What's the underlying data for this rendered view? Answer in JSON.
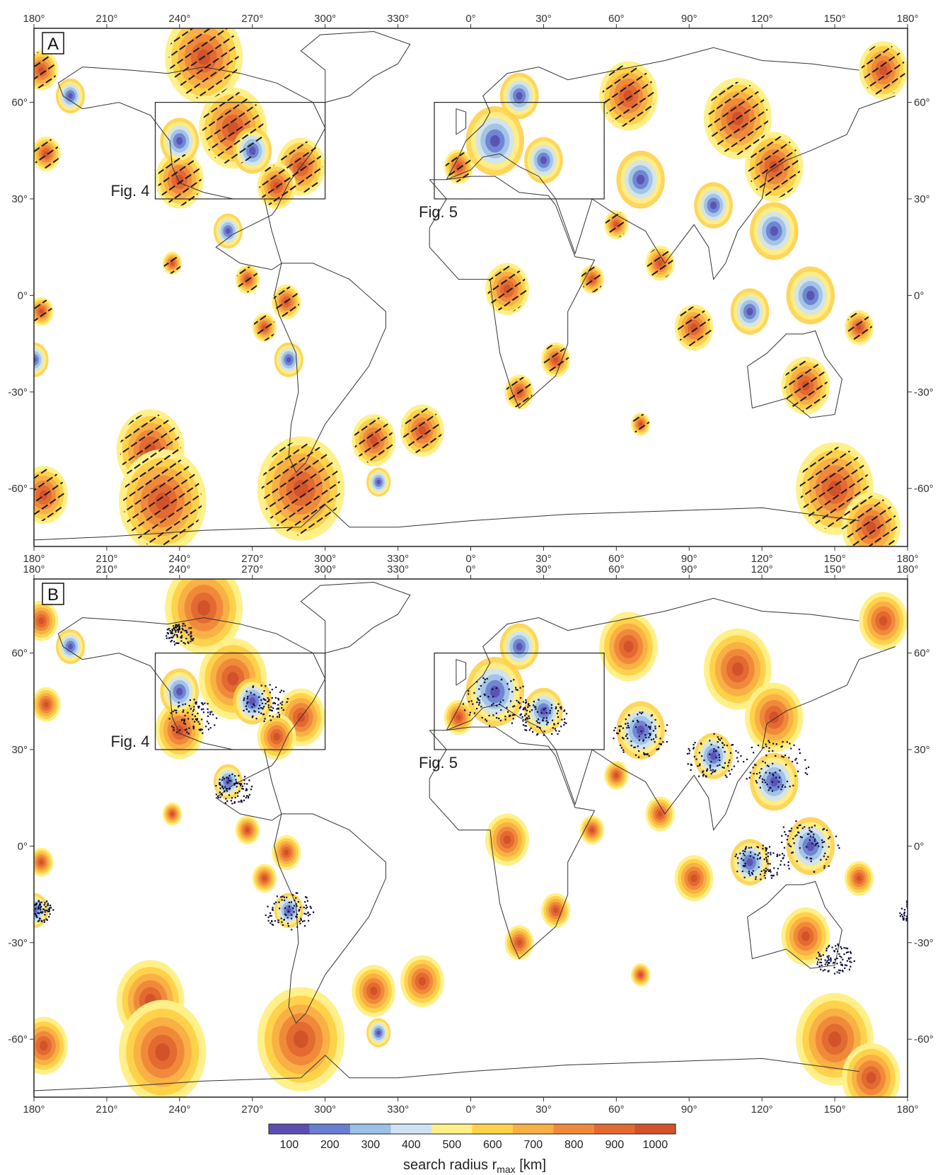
{
  "panels": [
    {
      "letter": "A",
      "show_stress_bars": true,
      "show_points": false,
      "boxes": [
        {
          "label": "Fig. 4",
          "lon": [
            230,
            300
          ],
          "lat": [
            30,
            60
          ]
        },
        {
          "label": "Fig. 5",
          "lon": [
            -15,
            55
          ],
          "lat": [
            30,
            60
          ]
        }
      ]
    },
    {
      "letter": "B",
      "show_stress_bars": false,
      "show_points": true,
      "boxes": [
        {
          "label": "Fig. 4",
          "lon": [
            230,
            300
          ],
          "lat": [
            30,
            60
          ]
        },
        {
          "label": "Fig. 5",
          "lon": [
            -15,
            55
          ],
          "lat": [
            30,
            60
          ]
        }
      ]
    }
  ],
  "axes": {
    "lon_ticks": [
      "180°",
      "210°",
      "240°",
      "270°",
      "300°",
      "330°",
      "0°",
      "30°",
      "60°",
      "90°",
      "120°",
      "150°",
      "180°"
    ],
    "lat_ticks_left": [
      "60°",
      "30°",
      "0°",
      "-30°",
      "-60°"
    ],
    "lat_ticks_right": [
      "60°",
      "30°",
      "0°",
      "-30°",
      "-60°"
    ],
    "lat_values": [
      60,
      30,
      0,
      -30,
      -60
    ]
  },
  "legend": {
    "ticks": [
      "100",
      "200",
      "300",
      "400",
      "500",
      "600",
      "700",
      "800",
      "900",
      "1000"
    ],
    "colors": [
      "#5a4fb0",
      "#6a7fd0",
      "#9cc0e6",
      "#cfe2f3",
      "#fff08a",
      "#ffd24a",
      "#f9b044",
      "#f08a3a",
      "#e36a30",
      "#d2522a"
    ],
    "title_main": "search radius r",
    "title_sub": "max",
    "title_unit": " [km]"
  },
  "colors": {
    "land_outline": "#333333",
    "high_radius": "#d2522a",
    "low_radius": "#5a4fb0",
    "stress_bar": "#1a1a1a",
    "point": "#0b0b3a"
  }
}
